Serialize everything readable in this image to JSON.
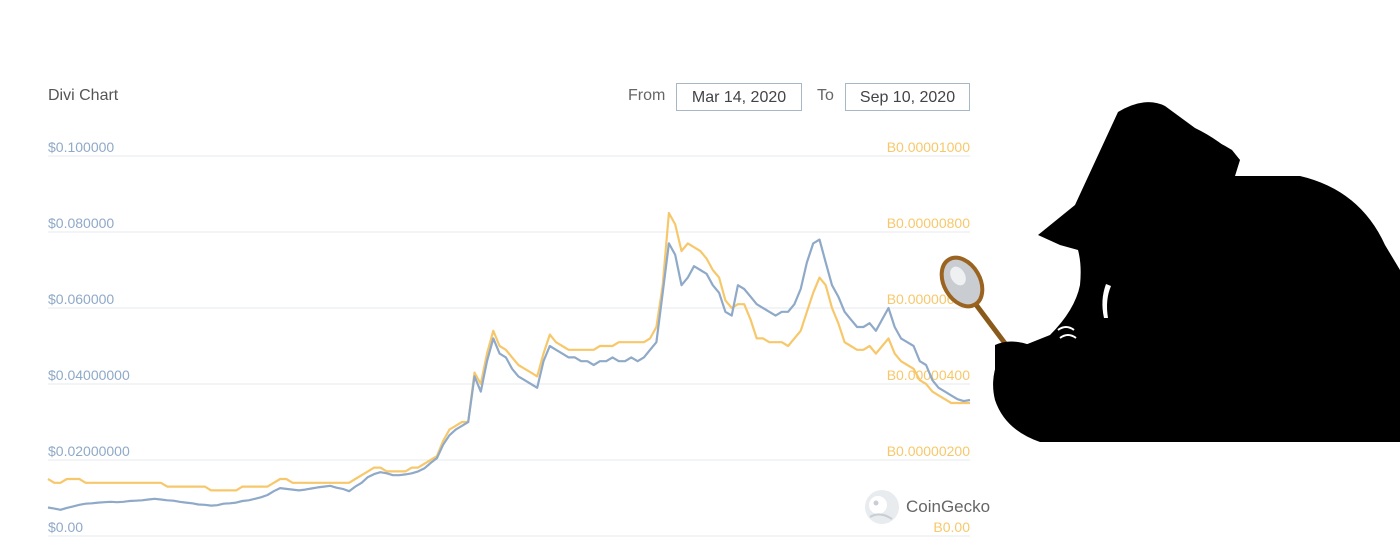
{
  "title": "Divi Chart",
  "date_range": {
    "from_label": "From",
    "from_value": "Mar 14, 2020",
    "to_label": "To",
    "to_value": "Sep 10, 2020"
  },
  "branding": {
    "name": "CoinGecko",
    "logo_icon": "gecko-logo-icon"
  },
  "overlay_image": {
    "icon": "detective-with-magnifying-glass-silhouette-icon"
  },
  "colors": {
    "usd_series": "#8fa9c8",
    "btc_series": "#f7c86b",
    "left_axis": "#8fa9c8",
    "right_axis": "#f7c86b",
    "grid": "#e4e9ee"
  },
  "chart_data": {
    "type": "line",
    "x_start": "Mar 14, 2020",
    "x_end": "Sep 10, 2020",
    "grid": true,
    "left_axis": {
      "ticks": [
        "$0.00",
        "$0.02000000",
        "$0.04000000",
        "$0.060000",
        "$0.080000",
        "$0.100000"
      ],
      "values": [
        0,
        0.02,
        0.04,
        0.06,
        0.08,
        0.1
      ],
      "ylim": [
        0,
        0.1
      ]
    },
    "right_axis": {
      "ticks": [
        "B0.00",
        "B0.00000200",
        "B0.00000400",
        "B0.00000600",
        "B0.00000800",
        "B0.00001000"
      ],
      "values": [
        0,
        2e-06,
        4e-06,
        6e-06,
        8e-06,
        1e-05
      ],
      "ylim": [
        0,
        1e-05
      ]
    },
    "series": [
      {
        "key": "usd",
        "axis": "left",
        "values": [
          0.0075,
          0.0072,
          0.0069,
          0.0074,
          0.0078,
          0.0082,
          0.0085,
          0.0086,
          0.0088,
          0.0089,
          0.009,
          0.0089,
          0.009,
          0.0092,
          0.0093,
          0.0094,
          0.0096,
          0.0098,
          0.0096,
          0.0094,
          0.0093,
          0.009,
          0.0088,
          0.0086,
          0.0083,
          0.0082,
          0.008,
          0.0081,
          0.0085,
          0.0086,
          0.0088,
          0.0092,
          0.0094,
          0.0098,
          0.0102,
          0.0108,
          0.0118,
          0.0126,
          0.0124,
          0.0122,
          0.012,
          0.0122,
          0.0125,
          0.0128,
          0.013,
          0.0132,
          0.0127,
          0.0124,
          0.0118,
          0.013,
          0.014,
          0.0155,
          0.0163,
          0.0168,
          0.0165,
          0.016,
          0.016,
          0.0162,
          0.0165,
          0.017,
          0.0178,
          0.0192,
          0.0205,
          0.024,
          0.0265,
          0.028,
          0.029,
          0.03,
          0.042,
          0.038,
          0.046,
          0.052,
          0.048,
          0.047,
          0.044,
          0.042,
          0.041,
          0.04,
          0.039,
          0.046,
          0.05,
          0.049,
          0.048,
          0.047,
          0.047,
          0.046,
          0.046,
          0.045,
          0.046,
          0.046,
          0.047,
          0.046,
          0.046,
          0.047,
          0.046,
          0.047,
          0.049,
          0.051,
          0.064,
          0.077,
          0.074,
          0.066,
          0.068,
          0.071,
          0.07,
          0.069,
          0.066,
          0.064,
          0.059,
          0.058,
          0.066,
          0.065,
          0.063,
          0.061,
          0.06,
          0.059,
          0.058,
          0.059,
          0.059,
          0.061,
          0.065,
          0.072,
          0.077,
          0.078,
          0.072,
          0.066,
          0.063,
          0.059,
          0.057,
          0.055,
          0.055,
          0.056,
          0.054,
          0.057,
          0.06,
          0.055,
          0.052,
          0.051,
          0.05,
          0.046,
          0.045,
          0.041,
          0.039,
          0.038,
          0.037,
          0.036,
          0.0355,
          0.0358
        ]
      },
      {
        "key": "btc",
        "axis": "right",
        "values": [
          1.5e-06,
          1.4e-06,
          1.4e-06,
          1.5e-06,
          1.5e-06,
          1.5e-06,
          1.4e-06,
          1.4e-06,
          1.4e-06,
          1.4e-06,
          1.4e-06,
          1.4e-06,
          1.4e-06,
          1.4e-06,
          1.4e-06,
          1.4e-06,
          1.4e-06,
          1.4e-06,
          1.4e-06,
          1.3e-06,
          1.3e-06,
          1.3e-06,
          1.3e-06,
          1.3e-06,
          1.3e-06,
          1.3e-06,
          1.2e-06,
          1.2e-06,
          1.2e-06,
          1.2e-06,
          1.2e-06,
          1.3e-06,
          1.3e-06,
          1.3e-06,
          1.3e-06,
          1.3e-06,
          1.4e-06,
          1.5e-06,
          1.5e-06,
          1.4e-06,
          1.4e-06,
          1.4e-06,
          1.4e-06,
          1.4e-06,
          1.4e-06,
          1.4e-06,
          1.4e-06,
          1.4e-06,
          1.4e-06,
          1.5e-06,
          1.6e-06,
          1.7e-06,
          1.8e-06,
          1.8e-06,
          1.7e-06,
          1.7e-06,
          1.7e-06,
          1.7e-06,
          1.8e-06,
          1.8e-06,
          1.9e-06,
          2e-06,
          2.1e-06,
          2.5e-06,
          2.8e-06,
          2.9e-06,
          3e-06,
          3e-06,
          4.3e-06,
          4e-06,
          4.8e-06,
          5.4e-06,
          5e-06,
          4.9e-06,
          4.7e-06,
          4.5e-06,
          4.4e-06,
          4.3e-06,
          4.2e-06,
          4.8e-06,
          5.3e-06,
          5.1e-06,
          5e-06,
          4.9e-06,
          4.9e-06,
          4.9e-06,
          4.9e-06,
          4.9e-06,
          5e-06,
          5e-06,
          5e-06,
          5.1e-06,
          5.1e-06,
          5.1e-06,
          5.1e-06,
          5.1e-06,
          5.2e-06,
          5.5e-06,
          6.6e-06,
          8.5e-06,
          8.2e-06,
          7.5e-06,
          7.7e-06,
          7.6e-06,
          7.5e-06,
          7.3e-06,
          7e-06,
          6.8e-06,
          6.2e-06,
          6e-06,
          6.1e-06,
          6.1e-06,
          5.7e-06,
          5.2e-06,
          5.2e-06,
          5.1e-06,
          5.1e-06,
          5.1e-06,
          5e-06,
          5.2e-06,
          5.4e-06,
          5.9e-06,
          6.4e-06,
          6.8e-06,
          6.6e-06,
          6e-06,
          5.6e-06,
          5.1e-06,
          5e-06,
          4.9e-06,
          4.9e-06,
          5e-06,
          4.8e-06,
          5e-06,
          5.2e-06,
          4.8e-06,
          4.6e-06,
          4.5e-06,
          4.4e-06,
          4.1e-06,
          4e-06,
          3.8e-06,
          3.7e-06,
          3.6e-06,
          3.5e-06,
          3.5e-06,
          3.5e-06,
          3.5e-06
        ]
      }
    ]
  }
}
